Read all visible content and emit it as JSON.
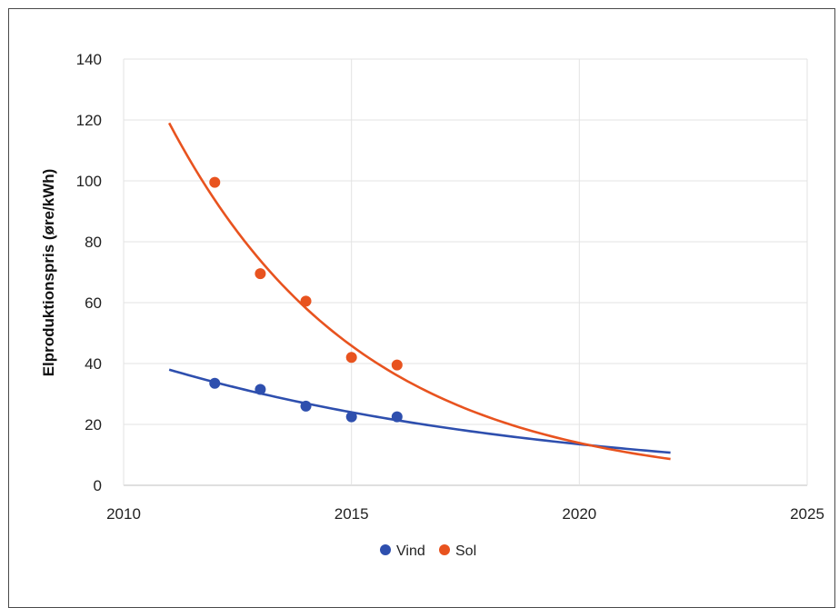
{
  "chart_data": {
    "type": "scatter",
    "title": "",
    "xlabel": "",
    "ylabel": "Elproduktionspris (øre/kWh)",
    "xlim": [
      2010,
      2025
    ],
    "ylim": [
      0,
      140
    ],
    "xticks": [
      "2010",
      "2015",
      "2020",
      "2025"
    ],
    "yticks": [
      "0",
      "20",
      "40",
      "60",
      "80",
      "100",
      "120",
      "140"
    ],
    "grid": true,
    "legend_position": "bottom",
    "series": [
      {
        "name": "Vind",
        "color": "#2e4fae",
        "points": [
          [
            2012,
            33.5
          ],
          [
            2013,
            31.5
          ],
          [
            2014,
            26
          ],
          [
            2015,
            22.5
          ],
          [
            2016,
            22.5
          ]
        ],
        "trendline": {
          "type": "exponential",
          "x_range": [
            2011,
            2022
          ],
          "a": 38.0,
          "b": -0.115
        }
      },
      {
        "name": "Sol",
        "color": "#e8531f",
        "points": [
          [
            2012,
            99.5
          ],
          [
            2013,
            69.5
          ],
          [
            2014,
            60.5
          ],
          [
            2015,
            42
          ],
          [
            2016,
            39.5
          ]
        ],
        "trendline": {
          "type": "exponential",
          "x_range": [
            2011,
            2022
          ],
          "a": 119.0,
          "b": -0.2385
        }
      }
    ]
  }
}
